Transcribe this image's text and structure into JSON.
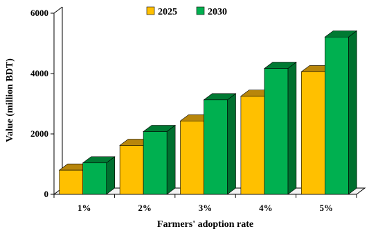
{
  "chart_data": {
    "type": "bar",
    "title": "",
    "xlabel": "Farmers' adoption rate",
    "ylabel": "Value (million BDT)",
    "categories": [
      "1%",
      "2%",
      "3%",
      "4%",
      "5%"
    ],
    "series": [
      {
        "name": "2025",
        "values": [
          800,
          1620,
          2430,
          3250,
          4060
        ],
        "color": "#FFC000",
        "side": "#C9A000",
        "top": "#B8860B"
      },
      {
        "name": "2030",
        "values": [
          1040,
          2080,
          3130,
          4170,
          5210
        ],
        "color": "#00B050",
        "side": "#00702F",
        "top": "#007A33"
      }
    ],
    "ylim": [
      0,
      6000
    ],
    "yticks": [
      0,
      2000,
      4000,
      6000
    ],
    "ytick_labels": [
      "0",
      "2000",
      "4000",
      "6000"
    ],
    "legend_position": "top-center",
    "grid": false,
    "style": "3d-clustered-bar"
  }
}
